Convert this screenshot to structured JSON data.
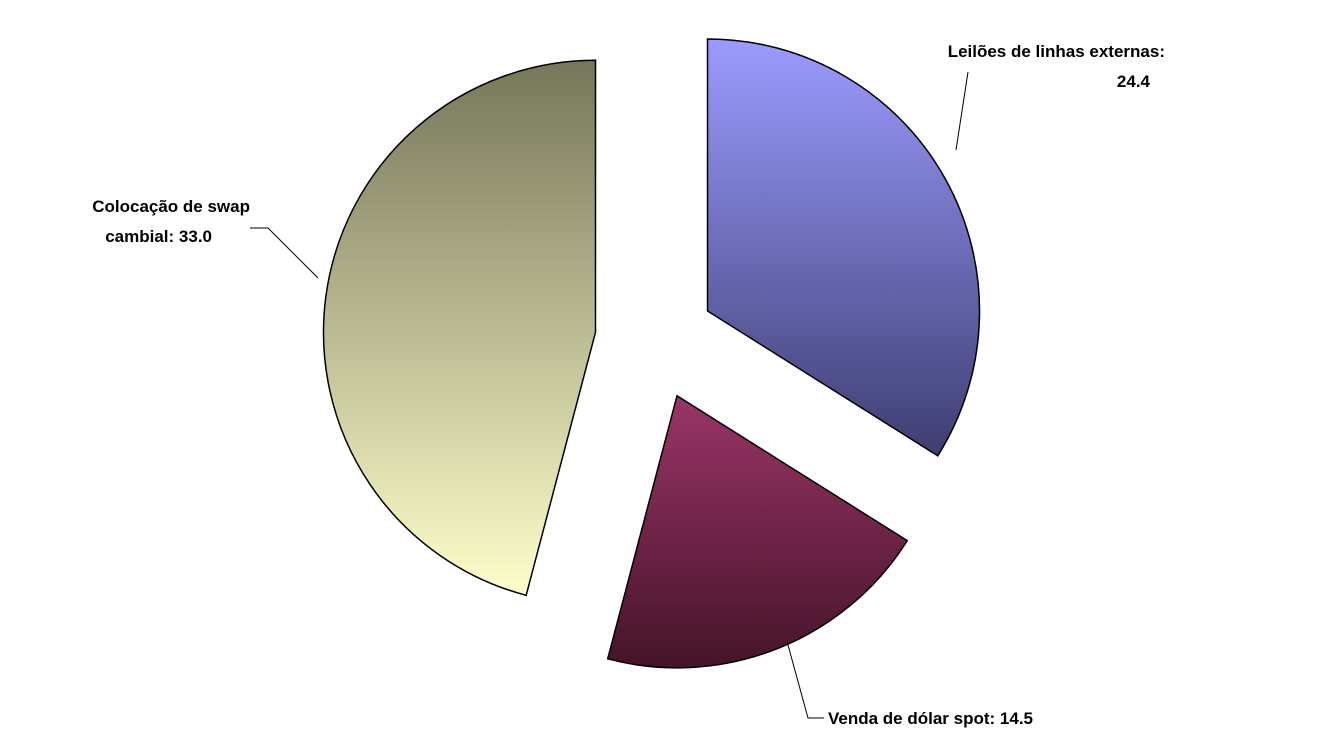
{
  "chart_data": {
    "type": "pie",
    "labels": [
      [
        "Leilões de linhas externas:",
        "24.4"
      ],
      [
        "Venda de dólar spot: 14.5"
      ],
      [
        "Colocação de swap",
        "cambial: 33.0"
      ]
    ],
    "values": [
      24.4,
      14.5,
      33.0
    ],
    "colors": [
      [
        "#9b9bff",
        "#3e3e72"
      ],
      [
        "#9a3468",
        "#451428"
      ],
      [
        "#76765a",
        "#ffffcc"
      ]
    ]
  }
}
